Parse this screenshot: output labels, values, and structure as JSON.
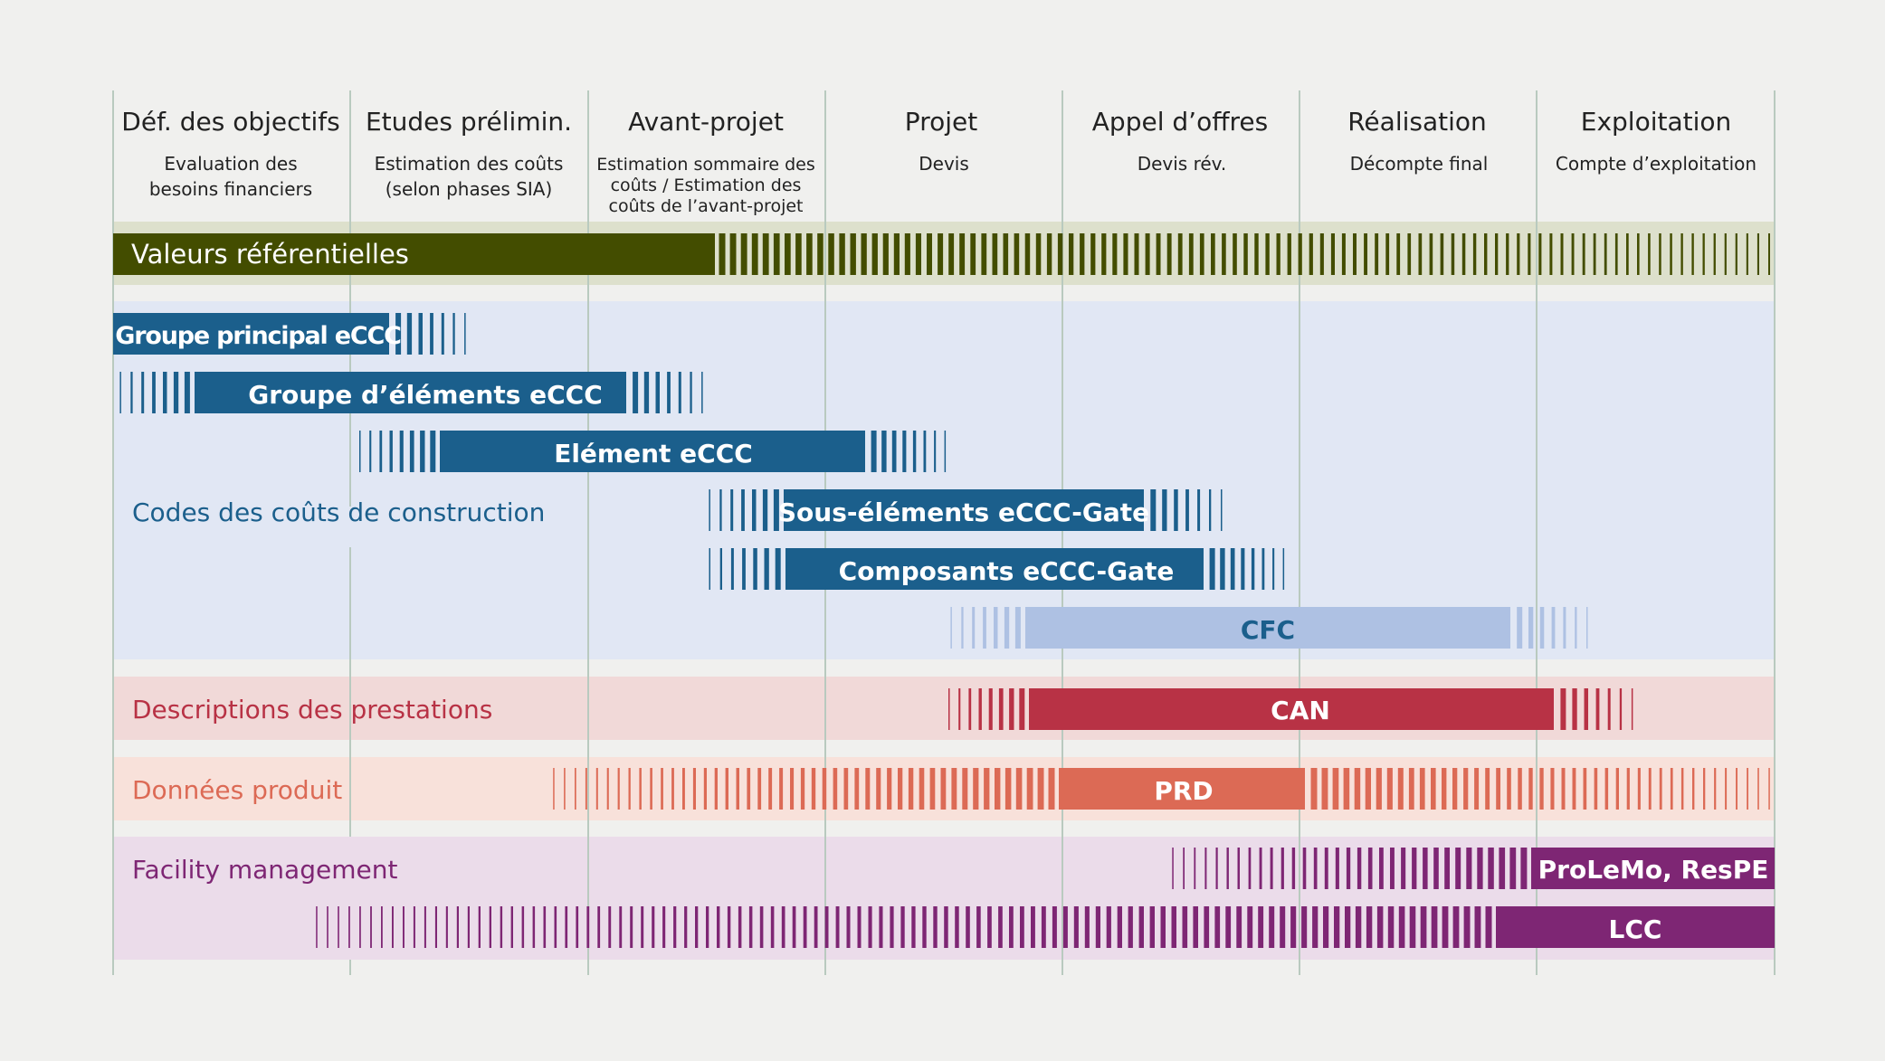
{
  "phases": [
    {
      "title": "Déf. des objectifs",
      "sub": [
        "Evaluation des",
        "besoins financiers"
      ]
    },
    {
      "title": "Etudes prélimin.",
      "sub": [
        "Estimation des coûts",
        "(selon phases SIA)"
      ]
    },
    {
      "title": "Avant-projet",
      "sub": [
        "Estimation sommaire des",
        "coûts / Estimation des",
        "coûts de l’avant-projet"
      ]
    },
    {
      "title": "Projet",
      "sub": [
        "Devis"
      ]
    },
    {
      "title": "Appel d’offres",
      "sub": [
        "Devis rév."
      ]
    },
    {
      "title": "Réalisation",
      "sub": [
        "Décompte final"
      ]
    },
    {
      "title": "Exploitation",
      "sub": [
        "Compte d’exploitation"
      ]
    }
  ],
  "groups": {
    "valeurs": {
      "bar_label": "Valeurs référentielles",
      "color": "#434d00",
      "band": "#dde0cc"
    },
    "codes": {
      "label": "Codes des coûts de construction",
      "color": "#1b5f8c",
      "band": "#e1e7f4"
    },
    "descriptions": {
      "label": "Descriptions des prestations",
      "color": "#b83245",
      "band": "#f1d9d8"
    },
    "donnees": {
      "label": "Données produit",
      "color": "#dc6a55",
      "band": "#f8e1da"
    },
    "facility": {
      "label": "Facility management",
      "color": "#7e2674",
      "band": "#ebdcea"
    }
  },
  "bars": {
    "groupe_principal": "Groupe principal eCCC",
    "groupe_elements": "Groupe d’éléments eCCC",
    "element": "Elément eCCC",
    "sous_elements": "Sous-éléments eCCC-Gate",
    "composants": "Composants eCCC-Gate",
    "cfc": "CFC",
    "can": "CAN",
    "prd": "PRD",
    "prolemo": "ProLeMo, ResPE",
    "lcc": "LCC"
  },
  "colors": {
    "background": "#f0f0ee",
    "divider": "#b9cabf",
    "phase_text": "#222222",
    "cfc": "#aec1e3",
    "cfc_text": "#1b5f8c",
    "white": "#ffffff"
  }
}
